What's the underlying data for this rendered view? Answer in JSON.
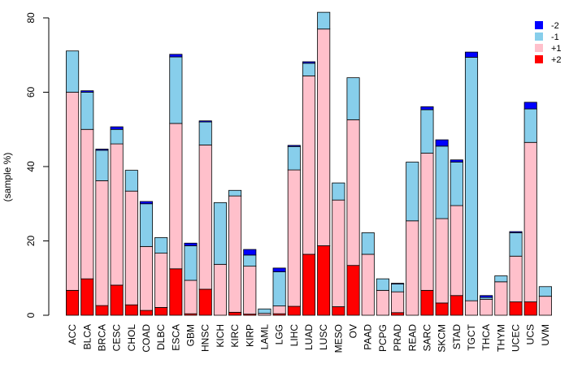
{
  "chart_data": {
    "type": "bar",
    "stacked": true,
    "title": "",
    "xlabel": "",
    "ylabel": "(sample %)",
    "ylim": [
      0,
      80
    ],
    "yticks": [
      0,
      20,
      40,
      60,
      80
    ],
    "grid": false,
    "legend_position": "top-right",
    "categories": [
      "ACC",
      "BLCA",
      "BRCA",
      "CESC",
      "CHOL",
      "COAD",
      "DLBC",
      "ESCA",
      "GBM",
      "HNSC",
      "KICH",
      "KIRC",
      "KIRP",
      "LAML",
      "LGG",
      "LIHC",
      "LUAD",
      "LUSC",
      "MESO",
      "OV",
      "PAAD",
      "PCPG",
      "PRAD",
      "READ",
      "SARC",
      "SKCM",
      "STAD",
      "TGCT",
      "THCA",
      "THYM",
      "UCEC",
      "UCS",
      "UVM"
    ],
    "series": [
      {
        "name": "+2",
        "color": "#ff0000",
        "values": [
          6.7,
          9.8,
          2.6,
          8.1,
          2.8,
          1.3,
          2.1,
          12.5,
          0.4,
          7.0,
          0,
          0.8,
          0.3,
          0,
          0.4,
          2.4,
          16.4,
          18.7,
          2.3,
          13.4,
          0,
          0,
          0.7,
          0,
          6.7,
          3.3,
          5.3,
          0,
          0,
          0,
          3.6,
          3.6,
          0
        ]
      },
      {
        "name": "+1",
        "color": "#ffc0cb",
        "values": [
          53.3,
          40.2,
          33.6,
          38.0,
          30.6,
          17.2,
          14.6,
          39.1,
          9.0,
          38.8,
          13.7,
          31.3,
          12.9,
          0.5,
          2.1,
          36.7,
          48.0,
          58.3,
          28.7,
          39.2,
          16.4,
          6.7,
          5.6,
          25.4,
          36.9,
          22.7,
          24.2,
          3.9,
          4.3,
          9.0,
          12.3,
          42.9,
          5.1
        ]
      },
      {
        "name": "-1",
        "color": "#87ceeb",
        "values": [
          11.1,
          10.0,
          8.2,
          3.9,
          5.6,
          11.5,
          4.2,
          17.9,
          9.3,
          6.2,
          16.6,
          1.5,
          3.0,
          1.2,
          9.2,
          6.3,
          3.4,
          4.5,
          4.6,
          11.3,
          5.8,
          3.1,
          2.1,
          15.8,
          11.7,
          19.5,
          11.7,
          65.5,
          0.5,
          1.6,
          6.3,
          9.0,
          2.6
        ]
      },
      {
        "name": "-2",
        "color": "#0000ff",
        "values": [
          0,
          0.4,
          0.3,
          0.7,
          0,
          0.6,
          0,
          0.7,
          0.7,
          0.3,
          0,
          0,
          1.5,
          0,
          1.0,
          0.3,
          0.4,
          0,
          0,
          0,
          0,
          0,
          0.2,
          0,
          0.8,
          1.7,
          0.6,
          1.4,
          0.5,
          0,
          0.3,
          1.8,
          0
        ]
      }
    ],
    "legend_order": [
      "-2",
      "-1",
      "+1",
      "+2"
    ]
  }
}
